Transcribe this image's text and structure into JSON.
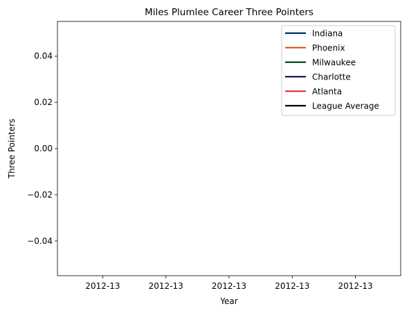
{
  "chart_data": {
    "type": "line",
    "title": "Miles Plumlee Career Three Pointers",
    "xlabel": "Year",
    "ylabel": "Three Pointers",
    "x_tick_labels": [
      "2012-13",
      "2012-13",
      "2012-13",
      "2012-13",
      "2012-13"
    ],
    "y_ticks": [
      0.04,
      0.02,
      0.0,
      -0.02,
      -0.04
    ],
    "y_tick_labels": [
      "0.04",
      "0.02",
      "0.00",
      "−0.02",
      "−0.04"
    ],
    "ylim": [
      -0.055,
      0.055
    ],
    "grid": false,
    "legend_position": "top-right",
    "series": [
      {
        "name": "Indiana",
        "color": "#002D62",
        "values": []
      },
      {
        "name": "Phoenix",
        "color": "#E56020",
        "values": []
      },
      {
        "name": "Milwaukee",
        "color": "#00471B",
        "values": []
      },
      {
        "name": "Charlotte",
        "color": "#1D1160",
        "values": []
      },
      {
        "name": "Atlanta",
        "color": "#E03A3E",
        "values": []
      },
      {
        "name": "League Average",
        "color": "#000000",
        "values": []
      }
    ]
  }
}
